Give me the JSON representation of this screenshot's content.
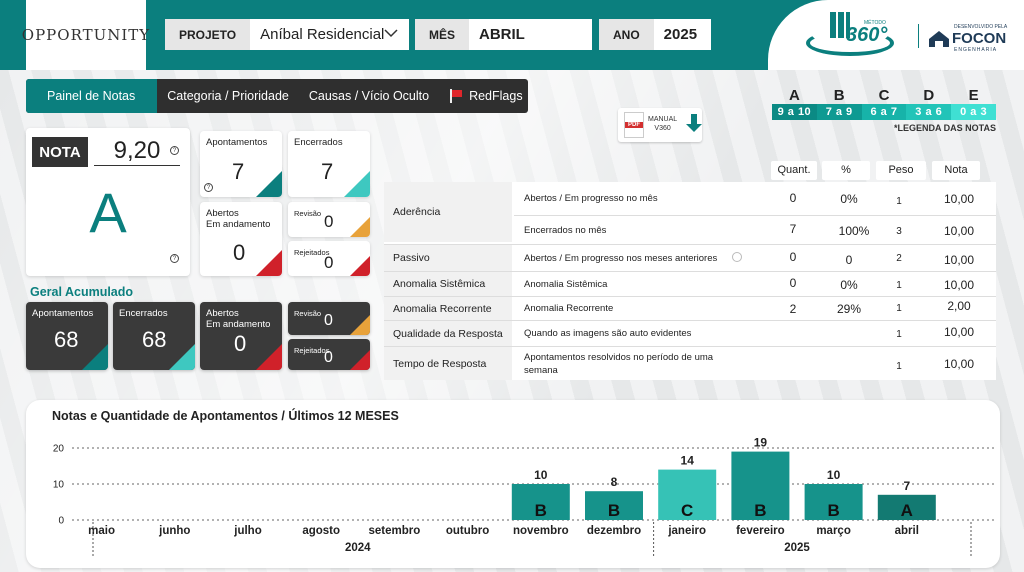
{
  "header": {
    "logo_text": "OPPORTUNITY",
    "filters": [
      {
        "label": "PROJETO",
        "value": "Aníbal Residencial"
      },
      {
        "label": "MÊS",
        "value": "ABRIL"
      },
      {
        "label": "ANO",
        "value": "2025"
      }
    ],
    "brand": {
      "metodo": "MÉTODO",
      "number": "360°",
      "dev": "DESENVOLVIDO PELA",
      "name": "FOCON",
      "sub": "ENGENHARIA"
    }
  },
  "tabs": [
    {
      "label": "Painel de Notas",
      "active": true
    },
    {
      "label": "Categoria / Prioridade",
      "active": false
    },
    {
      "label": "Causas / Vício Oculto",
      "active": false
    },
    {
      "label": "RedFlags",
      "active": false,
      "icon": "red-flag-icon"
    }
  ],
  "manual": {
    "line1": "MANUAL",
    "line2": "V360",
    "icon": "pdf-icon"
  },
  "legend": {
    "grades": [
      {
        "letter": "A",
        "range": "9 a 10",
        "color": "#0b8a84"
      },
      {
        "letter": "B",
        "range": "7 a 9",
        "color": "#0e9a92"
      },
      {
        "letter": "C",
        "range": "6 a 7",
        "color": "#17b3a9"
      },
      {
        "letter": "D",
        "range": "3 a 6",
        "color": "#22c4b8"
      },
      {
        "letter": "E",
        "range": "0 a 3",
        "color": "#3fe0d3"
      }
    ],
    "note": "*LEGENDA DAS NOTAS"
  },
  "nota": {
    "label": "NOTA",
    "value": "9,20",
    "letter": "A"
  },
  "month_cards": {
    "apontamentos": {
      "label": "Apontamentos",
      "value": "7"
    },
    "encerrados": {
      "label": "Encerrados",
      "value": "7"
    },
    "abertos": {
      "label1": "Abertos",
      "label2": "Em andamento",
      "value": "0"
    },
    "revisao": {
      "label": "Revisão",
      "value": "0"
    },
    "rejeitados": {
      "label": "Rejeitados",
      "value": "0"
    }
  },
  "geral": {
    "title": "Geral Acumulado",
    "apontamentos": {
      "label": "Apontamentos",
      "value": "68"
    },
    "encerrados": {
      "label": "Encerrados",
      "value": "68"
    },
    "abertos": {
      "label1": "Abertos",
      "label2": "Em andamento",
      "value": "0"
    },
    "revisao": {
      "label": "Revisão",
      "value": "0"
    },
    "rejeitados": {
      "label": "Rejeitados",
      "value": "0"
    }
  },
  "table": {
    "headers": [
      "Quant.",
      "%",
      "Peso",
      "Nota"
    ],
    "rows": [
      {
        "category": "Aderência",
        "description": "Abertos / Em progresso no mês",
        "quant": "0",
        "pct": "0%",
        "peso": "1",
        "nota": "10,00"
      },
      {
        "category": "",
        "description": "Encerrados no mês",
        "quant": "7",
        "pct": "100%",
        "peso": "3",
        "nota": "10,00"
      },
      {
        "category": "Passivo",
        "description": "Abertos / Em progresso nos meses anteriores",
        "quant": "0",
        "pct": "0",
        "peso": "2",
        "nota": "10,00"
      },
      {
        "category": "Anomalia Sistêmica",
        "description": "Anomalia Sistêmica",
        "quant": "0",
        "pct": "0%",
        "peso": "1",
        "nota": "10,00"
      },
      {
        "category": "Anomalia Recorrente",
        "description": "Anomalia Recorrente",
        "quant": "2",
        "pct": "29%",
        "peso": "1",
        "nota": "2,00"
      },
      {
        "category": "Qualidade da Resposta",
        "description": "Quando as imagens são auto evidentes",
        "quant": "",
        "pct": "",
        "peso": "1",
        "nota": "10,00"
      },
      {
        "category": "Tempo de Resposta",
        "description": "Apontamentos resolvidos no período de uma semana",
        "quant": "",
        "pct": "",
        "peso": "1",
        "nota": "10,00"
      }
    ]
  },
  "chart_data": {
    "type": "bar",
    "title": "Notas e Quantidade de Apontamentos / Últimos 12 MESES",
    "categories": [
      "maio",
      "junho",
      "julho",
      "agosto",
      "setembro",
      "outubro",
      "novembro",
      "dezembro",
      "janeiro",
      "fevereiro",
      "março",
      "abril"
    ],
    "years": [
      {
        "label": "2024",
        "from": 0,
        "to": 7
      },
      {
        "label": "2025",
        "from": 8,
        "to": 11
      }
    ],
    "values": [
      null,
      null,
      null,
      null,
      null,
      null,
      10,
      8,
      14,
      19,
      10,
      7
    ],
    "grades": [
      "",
      "",
      "",
      "",
      "",
      "",
      "B",
      "B",
      "C",
      "B",
      "B",
      "A"
    ],
    "ylim": [
      0,
      20
    ],
    "yticks": [
      0,
      10,
      20
    ],
    "grid": true,
    "xlabel": "",
    "ylabel": ""
  }
}
